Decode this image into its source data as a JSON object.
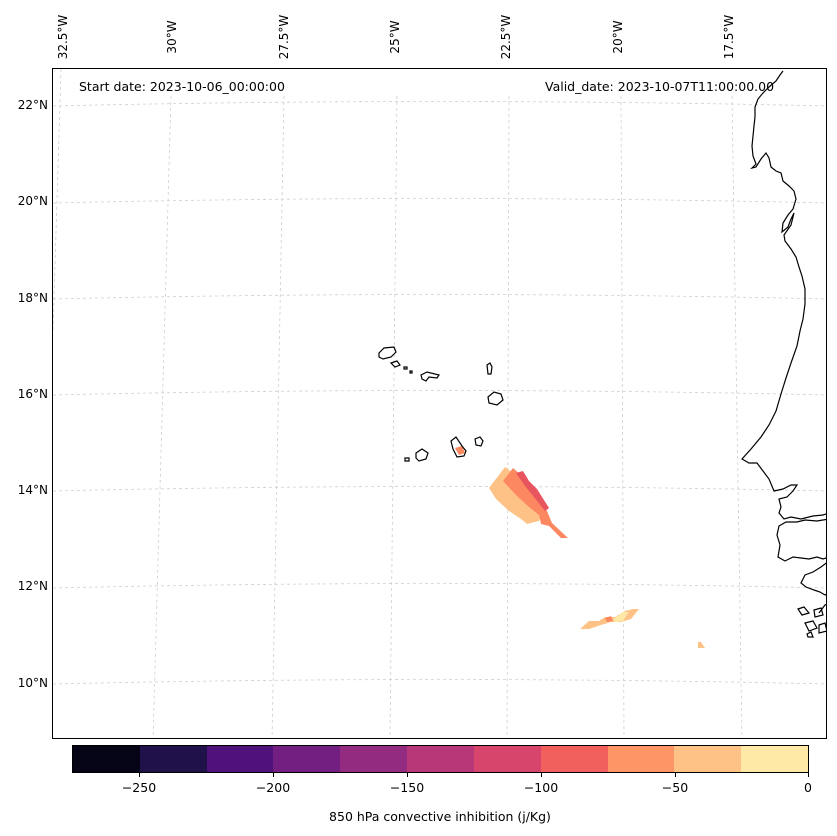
{
  "map": {
    "start_date": "Start date: 2023-10-06_00:00:00",
    "valid_date": "Valid_date: 2023-10-07T11:00:00.00",
    "lon_labels": [
      "32.5°W",
      "30°W",
      "27.5°W",
      "25°W",
      "22.5°W",
      "20°W",
      "17.5°W"
    ],
    "lat_labels": [
      "22°N",
      "20°N",
      "18°N",
      "16°N",
      "14°N",
      "12°N",
      "10°N"
    ],
    "field_colors": {
      "light": "#fec287",
      "mid": "#fb8861",
      "dark": "#e8555f",
      "pale": "#fde8a5"
    }
  },
  "colorbar": {
    "title": "850 hPa convective inhibition (j/Kg)",
    "tick_labels": [
      "−250",
      "−200",
      "−150",
      "−100",
      "−50",
      "0"
    ],
    "colors": [
      "#050416",
      "#20114b",
      "#4f127b",
      "#721f81",
      "#932b80",
      "#b73779",
      "#d8456c",
      "#f1605d",
      "#fd9567",
      "#fec287",
      "#fde9a5"
    ]
  }
}
